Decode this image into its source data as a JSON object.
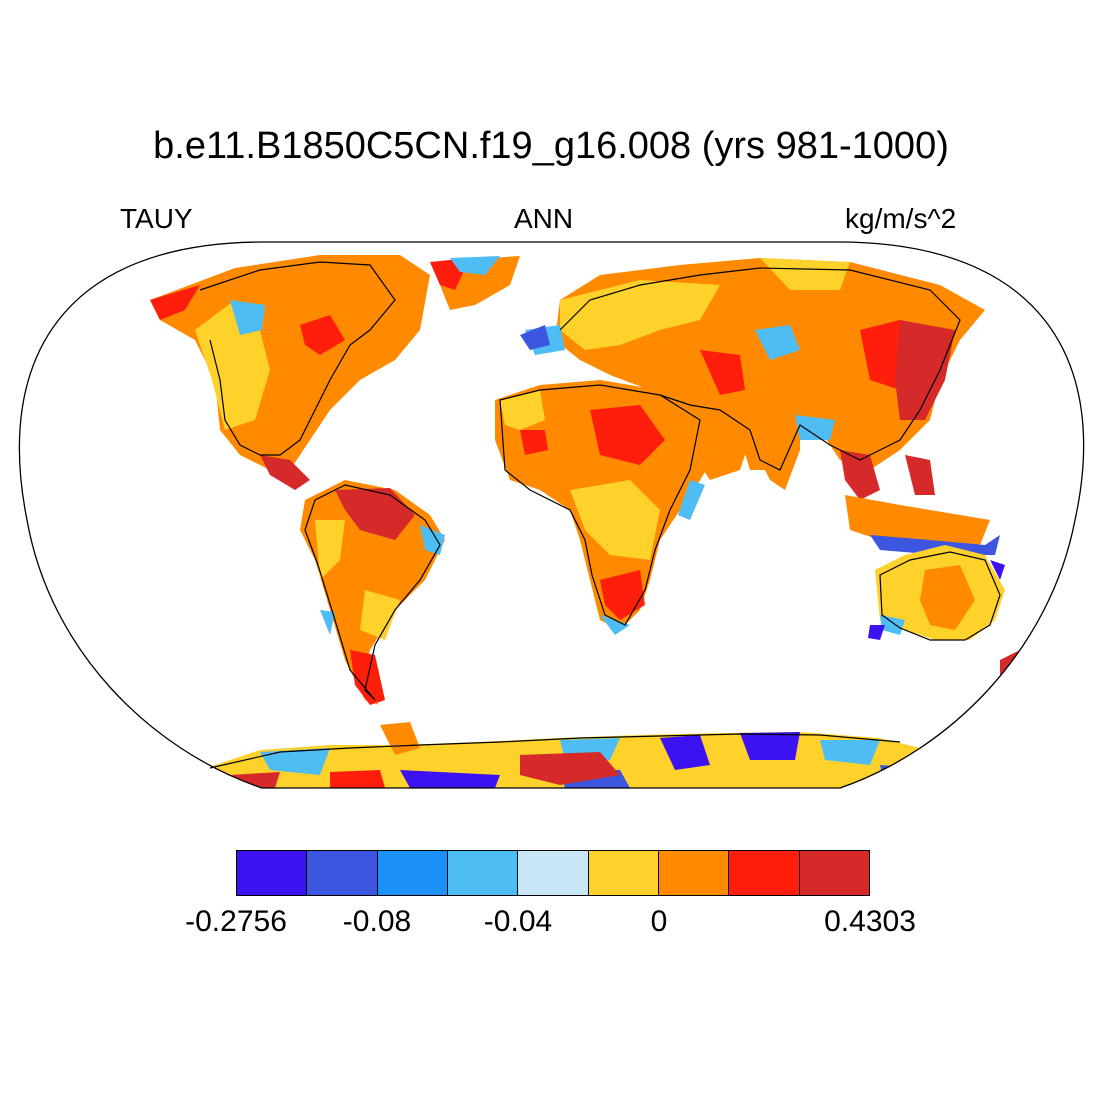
{
  "title": "b.e11.B1850C5CN.f19_g16.008 (yrs 981-1000)",
  "left_label": "TAUY",
  "center_label": "ANN",
  "right_label": "kg/m/s^2",
  "colorbar": {
    "colors": [
      "#3d12f2",
      "#3c56e0",
      "#1c92f9",
      "#4dbdf3",
      "#c8e6f6",
      "#ffd12b",
      "#ff8a00",
      "#ff1d0c",
      "#d62a2a"
    ],
    "labels": [
      "-0.2756",
      "-0.08",
      "-0.04",
      "0",
      "0.4303"
    ]
  }
}
